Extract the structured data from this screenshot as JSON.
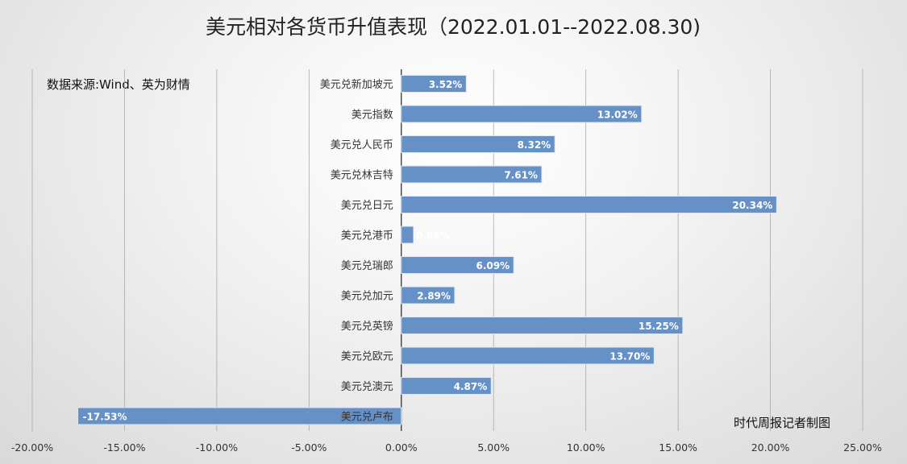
{
  "chart_data": {
    "type": "bar",
    "orientation": "horizontal",
    "title": "美元相对各货币升值表现（2022.01.01--2022.08.30)",
    "source_note": "数据来源:Wind、英为财情",
    "credit": "时代周报记者制图",
    "categories": [
      "美元兑新加坡元",
      "美元指数",
      "美元兑人民币",
      "美元兑林吉特",
      "美元兑日元",
      "美元兑港币",
      "美元兑瑞郎",
      "美元兑加元",
      "美元兑英镑",
      "美元兑欧元",
      "美元兑澳元",
      "美元兑卢布"
    ],
    "values": [
      3.52,
      13.02,
      8.32,
      7.61,
      20.34,
      0.66,
      6.09,
      2.89,
      15.25,
      13.7,
      4.87,
      -17.53
    ],
    "value_labels": [
      "3.52%",
      "13.02%",
      "8.32%",
      "7.61%",
      "20.34%",
      "0.66%",
      "6.09%",
      "2.89%",
      "15.25%",
      "13.70%",
      "4.87%",
      "-17.53%"
    ],
    "xlim": [
      -20,
      25
    ],
    "xticks": [
      -20,
      -15,
      -10,
      -5,
      0,
      5,
      10,
      15,
      20,
      25
    ],
    "xtick_labels": [
      "-20.00%",
      "-15.00%",
      "-10.00%",
      "-5.00%",
      "0.00%",
      "5.00%",
      "10.00%",
      "15.00%",
      "20.00%",
      "25.00%"
    ],
    "grid": true,
    "bar_color": "#6591c7"
  }
}
